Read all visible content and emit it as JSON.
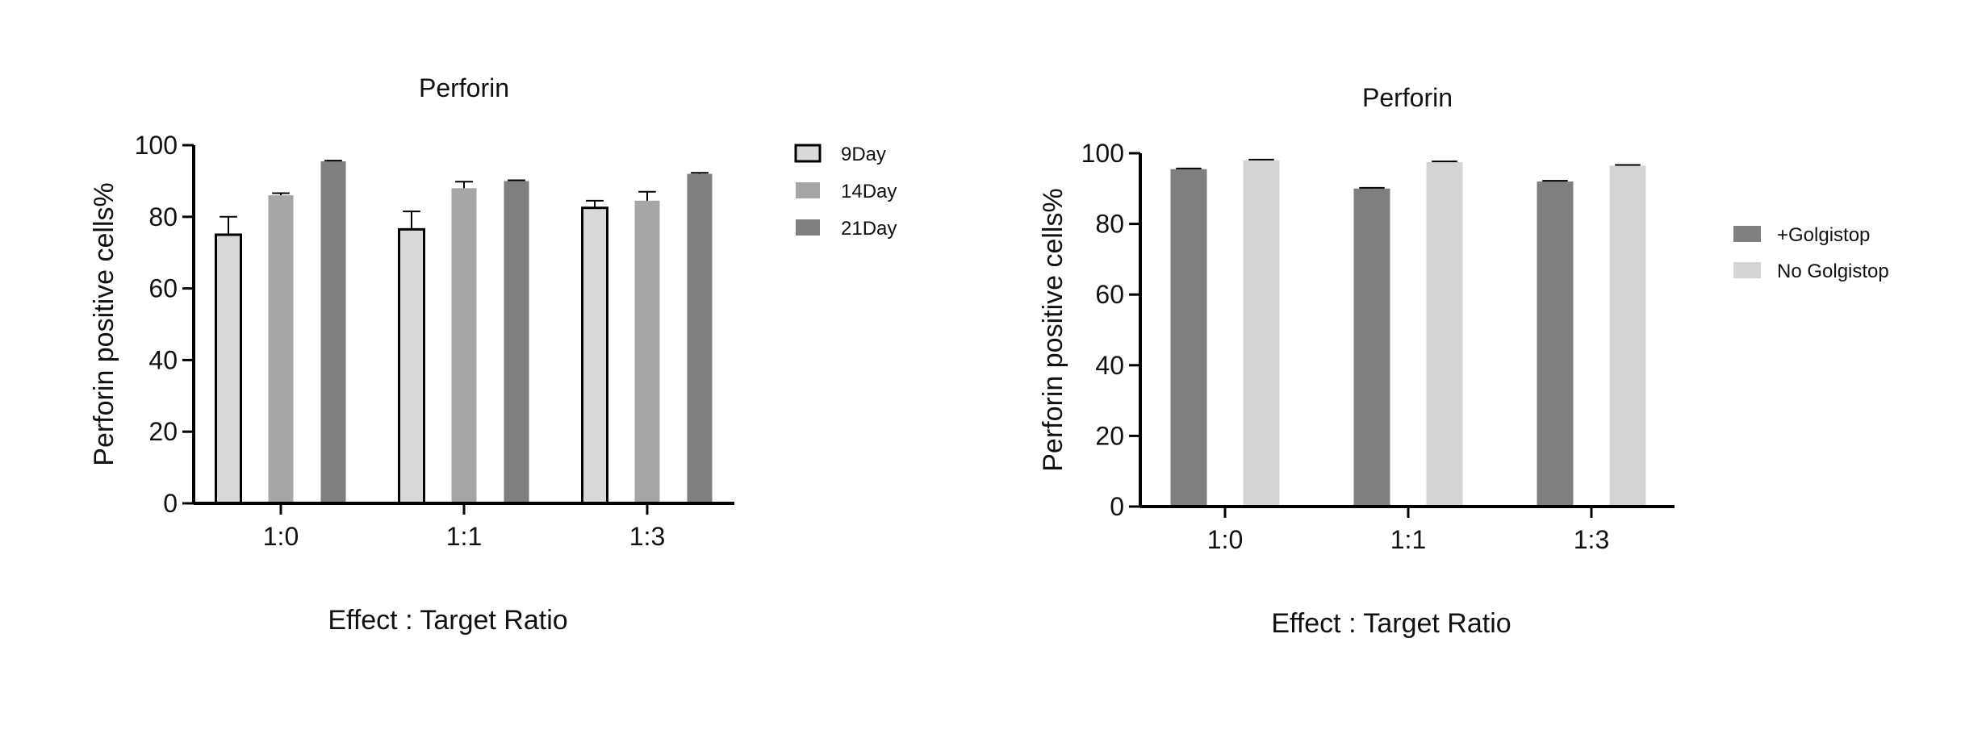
{
  "chart_data": [
    {
      "type": "bar",
      "title": "Perforin",
      "xlabel": "Effect : Target Ratio",
      "ylabel": "Perforin positive cells%",
      "categories": [
        "1:0",
        "1:1",
        "1:3"
      ],
      "ylim": [
        0,
        100
      ],
      "yticks": [
        0,
        20,
        40,
        60,
        80,
        100
      ],
      "legend_position": "right",
      "series": [
        {
          "name": "9Day",
          "values": [
            75,
            76.5,
            82.5
          ],
          "errors": [
            5,
            5,
            2
          ],
          "color": "#d9d9d9",
          "outline": true
        },
        {
          "name": "14Day",
          "values": [
            86,
            88,
            84.5
          ],
          "errors": [
            0.6,
            1.8,
            2.5
          ],
          "color": "#a6a6a8",
          "outline": false
        },
        {
          "name": "21Day",
          "values": [
            95.5,
            90,
            92
          ],
          "errors": [
            0.2,
            0.2,
            0.3
          ],
          "color": "#7f7f80",
          "outline": false
        }
      ]
    },
    {
      "type": "bar",
      "title": "Perforin",
      "xlabel": "Effect : Target Ratio",
      "ylabel": "Perforin positive cells%",
      "categories": [
        "1:0",
        "1:1",
        "1:3"
      ],
      "ylim": [
        0,
        100
      ],
      "yticks": [
        0,
        20,
        40,
        60,
        80,
        100
      ],
      "legend_position": "right",
      "series": [
        {
          "name": "+Golgistop",
          "values": [
            95.5,
            90,
            92
          ],
          "errors": [
            0.2,
            0.2,
            0.2
          ],
          "color": "#7f7f80",
          "outline": false
        },
        {
          "name": "No Golgistop",
          "values": [
            98,
            97.5,
            96.5
          ],
          "errors": [
            0.2,
            0.2,
            0.2
          ],
          "color": "#d4d4d4",
          "outline": false
        }
      ]
    }
  ]
}
